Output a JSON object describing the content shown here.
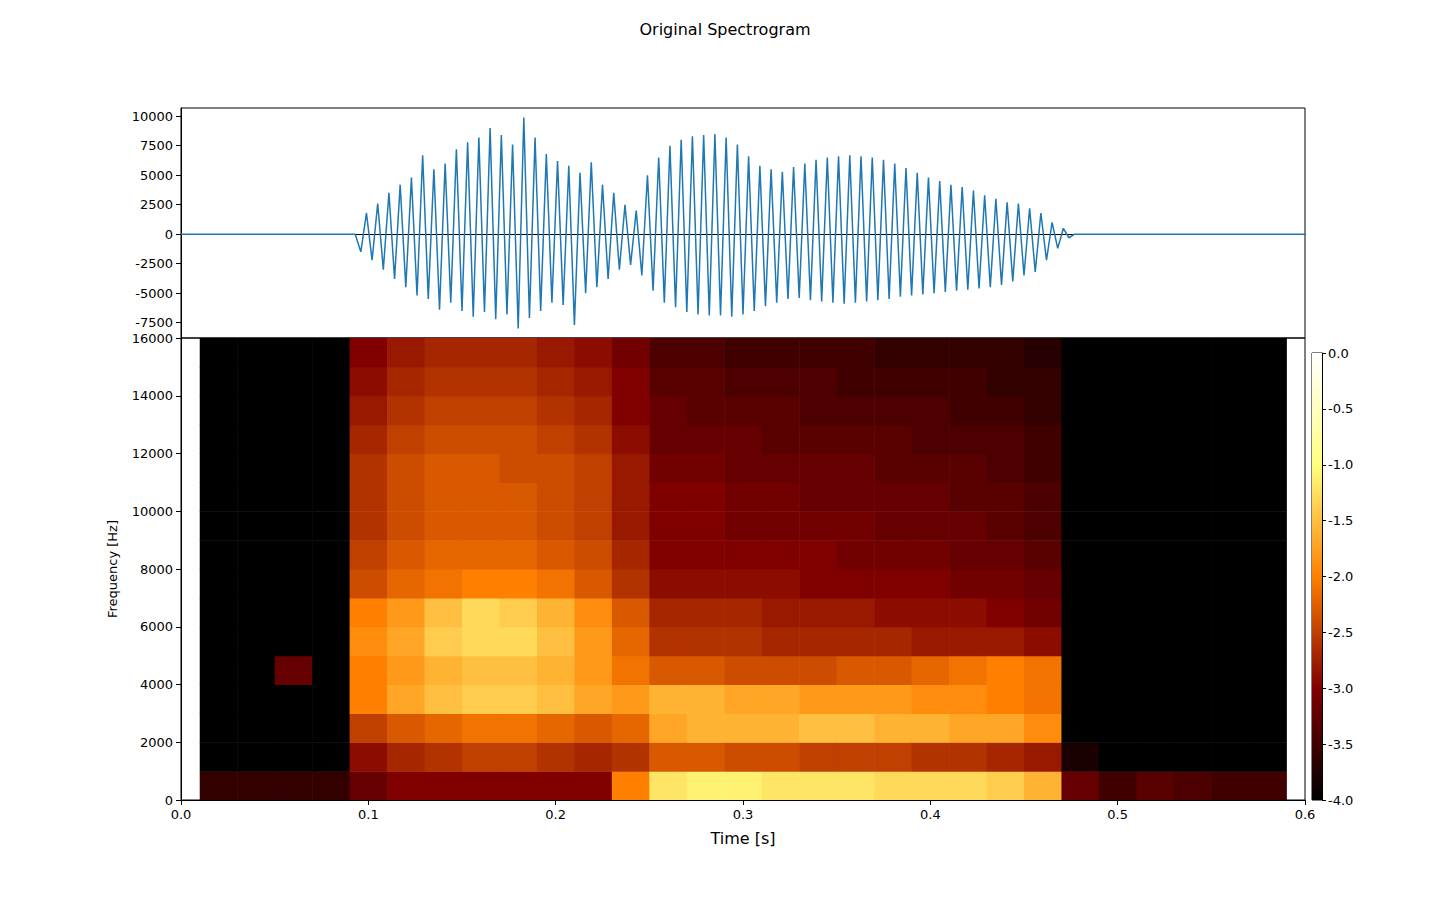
{
  "title": "Original Spectrogram",
  "chart_data": [
    {
      "type": "line",
      "color": "#1f77b4",
      "tick_labels": "y",
      "xlim": [
        0,
        0.6
      ],
      "ylim": [
        -8800,
        10700
      ],
      "yticks": [
        -7500,
        -5000,
        -2500,
        0,
        2500,
        5000,
        7500,
        10000
      ],
      "x": [
        0,
        0.093,
        0.096,
        0.099,
        0.102,
        0.105,
        0.108,
        0.111,
        0.114,
        0.117,
        0.12,
        0.123,
        0.126,
        0.129,
        0.132,
        0.135,
        0.138,
        0.141,
        0.144,
        0.147,
        0.15,
        0.153,
        0.156,
        0.159,
        0.162,
        0.165,
        0.168,
        0.171,
        0.174,
        0.177,
        0.18,
        0.183,
        0.186,
        0.189,
        0.192,
        0.195,
        0.198,
        0.201,
        0.204,
        0.207,
        0.21,
        0.213,
        0.216,
        0.219,
        0.222,
        0.225,
        0.228,
        0.231,
        0.234,
        0.237,
        0.24,
        0.243,
        0.246,
        0.249,
        0.252,
        0.255,
        0.258,
        0.261,
        0.264,
        0.267,
        0.27,
        0.273,
        0.276,
        0.279,
        0.282,
        0.285,
        0.288,
        0.291,
        0.294,
        0.297,
        0.3,
        0.303,
        0.306,
        0.309,
        0.312,
        0.315,
        0.318,
        0.321,
        0.324,
        0.327,
        0.33,
        0.333,
        0.336,
        0.339,
        0.342,
        0.345,
        0.348,
        0.351,
        0.354,
        0.357,
        0.36,
        0.363,
        0.366,
        0.369,
        0.372,
        0.375,
        0.378,
        0.381,
        0.384,
        0.387,
        0.39,
        0.393,
        0.396,
        0.399,
        0.402,
        0.405,
        0.408,
        0.411,
        0.414,
        0.417,
        0.42,
        0.423,
        0.426,
        0.429,
        0.432,
        0.435,
        0.438,
        0.441,
        0.444,
        0.447,
        0.45,
        0.453,
        0.456,
        0.459,
        0.462,
        0.465,
        0.468,
        0.471,
        0.474,
        0.477,
        0.6
      ],
      "values": [
        0,
        0,
        -1500,
        1800,
        -2200,
        2600,
        -3000,
        3500,
        -3800,
        4200,
        -4500,
        4800,
        -5200,
        6700,
        -5500,
        5500,
        -6400,
        6000,
        -5800,
        7200,
        -6500,
        7800,
        -7000,
        8200,
        -6600,
        9000,
        -7200,
        8400,
        -6800,
        7600,
        -8000,
        9900,
        -7100,
        8200,
        -6500,
        6800,
        -5800,
        6200,
        -6000,
        5800,
        -7700,
        5200,
        -5000,
        6100,
        -4500,
        4200,
        -3800,
        3500,
        -3000,
        2500,
        -2600,
        2000,
        -3500,
        5000,
        -4800,
        6500,
        -5800,
        7500,
        -6200,
        8000,
        -6600,
        8300,
        -6800,
        8400,
        -6900,
        8500,
        -6900,
        8200,
        -7000,
        7600,
        -6800,
        6600,
        -6500,
        5800,
        -6100,
        5500,
        -5800,
        5300,
        -5500,
        5700,
        -5400,
        6000,
        -5600,
        6300,
        -5700,
        6500,
        -5800,
        6600,
        -5900,
        6700,
        -5800,
        6600,
        -5700,
        6500,
        -5600,
        6300,
        -5500,
        6000,
        -5300,
        5600,
        -5200,
        5200,
        -5100,
        4800,
        -5000,
        4500,
        -4900,
        4200,
        -4800,
        4000,
        -4700,
        3700,
        -4600,
        3300,
        -4500,
        3000,
        -4300,
        2700,
        -4000,
        2600,
        -3500,
        2200,
        -3200,
        1800,
        -2200,
        1000,
        -1200,
        500,
        -300,
        0,
        0
      ]
    },
    {
      "type": "heatmap",
      "xlabel": "Time [s]",
      "ylabel": "Frequency [Hz]",
      "xlim": [
        0,
        0.6
      ],
      "ylim": [
        0,
        16000
      ],
      "xticks": [
        {
          "value": 0,
          "label": "0.0"
        },
        0.1,
        0.2,
        0.3,
        0.4,
        0.5,
        0.6
      ],
      "yticks": [
        0,
        2000,
        4000,
        6000,
        8000,
        10000,
        12000,
        14000,
        16000
      ],
      "time_edges": [
        0.01,
        0.03,
        0.05,
        0.07,
        0.09,
        0.11,
        0.13,
        0.15,
        0.17,
        0.19,
        0.21,
        0.23,
        0.25,
        0.27,
        0.29,
        0.31,
        0.33,
        0.35,
        0.37,
        0.39,
        0.41,
        0.43,
        0.45,
        0.47,
        0.49,
        0.51,
        0.53,
        0.55,
        0.57,
        0.59
      ],
      "freq_edges": [
        0,
        1000,
        2000,
        3000,
        4000,
        5000,
        6000,
        7000,
        8000,
        9000,
        10000,
        11000,
        12000,
        13000,
        14000,
        15000,
        16000
      ],
      "cells": [
        [
          -3.6,
          -4,
          -4,
          -4,
          -4,
          -4,
          -4,
          -4,
          -4,
          -4,
          -4,
          -4,
          -4,
          -4,
          -4,
          -4
        ],
        [
          -3.6,
          -4,
          -4,
          -4,
          -4,
          -4,
          -4,
          -4,
          -4,
          -4,
          -4,
          -4,
          -4,
          -4,
          -4,
          -4
        ],
        [
          -3.6,
          -4,
          -4,
          -4,
          -3.2,
          -4,
          -4,
          -4,
          -4,
          -4,
          -4,
          -4,
          -4,
          -4,
          -4,
          -4
        ],
        [
          -3.6,
          -4,
          -4,
          -4,
          -4,
          -4,
          -4,
          -4,
          -4,
          -4,
          -4,
          -4,
          -4,
          -4,
          -4,
          -4
        ],
        [
          -3.2,
          -2.9,
          -2.5,
          -2.0,
          -2.0,
          -1.9,
          -2.0,
          -2.4,
          -2.5,
          -2.6,
          -2.6,
          -2.6,
          -2.7,
          -2.8,
          -2.9,
          -3.0
        ],
        [
          -3.0,
          -2.7,
          -2.3,
          -1.7,
          -1.8,
          -1.7,
          -1.8,
          -2.2,
          -2.3,
          -2.4,
          -2.4,
          -2.4,
          -2.5,
          -2.6,
          -2.7,
          -2.8
        ],
        [
          -3.0,
          -2.6,
          -2.2,
          -1.5,
          -1.6,
          -1.4,
          -1.5,
          -2.1,
          -2.2,
          -2.3,
          -2.3,
          -2.3,
          -2.4,
          -2.5,
          -2.6,
          -2.7
        ],
        [
          -3.0,
          -2.5,
          -2.1,
          -1.4,
          -1.5,
          -1.3,
          -1.3,
          -2.0,
          -2.2,
          -2.3,
          -2.3,
          -2.3,
          -2.4,
          -2.5,
          -2.6,
          -2.7
        ],
        [
          -3.0,
          -2.5,
          -2.1,
          -1.4,
          -1.5,
          -1.3,
          -1.4,
          -2.0,
          -2.2,
          -2.3,
          -2.3,
          -2.4,
          -2.4,
          -2.5,
          -2.6,
          -2.7
        ],
        [
          -3.0,
          -2.6,
          -2.2,
          -1.5,
          -1.6,
          -1.5,
          -1.6,
          -2.1,
          -2.3,
          -2.4,
          -2.4,
          -2.4,
          -2.5,
          -2.6,
          -2.7,
          -2.8
        ],
        [
          -3.0,
          -2.7,
          -2.3,
          -1.7,
          -1.8,
          -1.8,
          -1.9,
          -2.3,
          -2.4,
          -2.5,
          -2.5,
          -2.5,
          -2.6,
          -2.7,
          -2.8,
          -2.9
        ],
        [
          -2.0,
          -2.6,
          -2.2,
          -1.8,
          -2.1,
          -2.2,
          -2.3,
          -2.6,
          -2.7,
          -2.8,
          -2.8,
          -2.8,
          -2.9,
          -3.0,
          -3.0,
          -3.1
        ],
        [
          -1.2,
          -2.3,
          -1.7,
          -1.6,
          -2.3,
          -2.6,
          -2.7,
          -2.9,
          -3.0,
          -3.0,
          -3.0,
          -3.1,
          -3.2,
          -3.2,
          -3.3,
          -3.4
        ],
        [
          -1.1,
          -2.3,
          -1.6,
          -1.6,
          -2.3,
          -2.6,
          -2.7,
          -2.9,
          -3.0,
          -3.0,
          -3.0,
          -3.1,
          -3.2,
          -3.3,
          -3.3,
          -3.4
        ],
        [
          -1.1,
          -2.4,
          -1.6,
          -1.7,
          -2.4,
          -2.6,
          -2.7,
          -2.9,
          -3.0,
          -3.1,
          -3.1,
          -3.2,
          -3.2,
          -3.3,
          -3.4,
          -3.5
        ],
        [
          -1.2,
          -2.4,
          -1.6,
          -1.7,
          -2.4,
          -2.7,
          -2.8,
          -2.9,
          -3.0,
          -3.1,
          -3.1,
          -3.2,
          -3.3,
          -3.3,
          -3.4,
          -3.5
        ],
        [
          -1.2,
          -2.5,
          -1.5,
          -1.8,
          -2.4,
          -2.7,
          -2.8,
          -3.0,
          -3.0,
          -3.1,
          -3.2,
          -3.2,
          -3.3,
          -3.4,
          -3.4,
          -3.5
        ],
        [
          -1.2,
          -2.5,
          -1.5,
          -1.8,
          -2.3,
          -2.7,
          -2.8,
          -3.0,
          -3.1,
          -3.1,
          -3.2,
          -3.2,
          -3.3,
          -3.4,
          -3.5,
          -3.5
        ],
        [
          -1.3,
          -2.5,
          -1.6,
          -1.8,
          -2.3,
          -2.7,
          -2.9,
          -3.0,
          -3.1,
          -3.2,
          -3.2,
          -3.3,
          -3.3,
          -3.4,
          -3.5,
          -3.6
        ],
        [
          -1.3,
          -2.6,
          -1.6,
          -1.9,
          -2.2,
          -2.8,
          -2.9,
          -3.0,
          -3.1,
          -3.2,
          -3.2,
          -3.3,
          -3.4,
          -3.4,
          -3.5,
          -3.6
        ],
        [
          -1.3,
          -2.6,
          -1.7,
          -1.9,
          -2.1,
          -2.8,
          -2.9,
          -3.1,
          -3.2,
          -3.2,
          -3.3,
          -3.3,
          -3.4,
          -3.5,
          -3.5,
          -3.6
        ],
        [
          -1.4,
          -2.7,
          -1.7,
          -2.0,
          -2.0,
          -2.8,
          -3.0,
          -3.1,
          -3.2,
          -3.3,
          -3.3,
          -3.4,
          -3.4,
          -3.5,
          -3.6,
          -3.6
        ],
        [
          -1.6,
          -2.8,
          -1.9,
          -2.1,
          -2.1,
          -2.9,
          -3.1,
          -3.2,
          -3.3,
          -3.4,
          -3.4,
          -3.5,
          -3.5,
          -3.6,
          -3.6,
          -3.7
        ],
        [
          -3.2,
          -3.8,
          -4,
          -4,
          -4,
          -4,
          -4,
          -4,
          -4,
          -4,
          -4,
          -4,
          -4,
          -4,
          -4,
          -4
        ],
        [
          -3.5,
          -4,
          -4,
          -4,
          -4,
          -4,
          -4,
          -4,
          -4,
          -4,
          -4,
          -4,
          -4,
          -4,
          -4,
          -4
        ],
        [
          -3.3,
          -4,
          -4,
          -4,
          -4,
          -4,
          -4,
          -4,
          -4,
          -4,
          -4,
          -4,
          -4,
          -4,
          -4,
          -4
        ],
        [
          -3.4,
          -4,
          -4,
          -4,
          -4,
          -4,
          -4,
          -4,
          -4,
          -4,
          -4,
          -4,
          -4,
          -4,
          -4,
          -4
        ],
        [
          -3.5,
          -4,
          -4,
          -4,
          -4,
          -4,
          -4,
          -4,
          -4,
          -4,
          -4,
          -4,
          -4,
          -4,
          -4,
          -4
        ],
        [
          -3.5,
          -4,
          -4,
          -4,
          -4,
          -4,
          -4,
          -4,
          -4,
          -4,
          -4,
          -4,
          -4,
          -4,
          -4,
          -4
        ]
      ],
      "colorbar": {
        "range": [
          -4,
          0
        ],
        "ticks": [
          {
            "value": 0,
            "label": "0.0"
          },
          -0.5,
          {
            "value": -1,
            "label": "-1.0"
          },
          -1.5,
          {
            "value": -2,
            "label": "-2.0"
          },
          -2.5,
          {
            "value": -3,
            "label": "-3.0"
          },
          -3.5,
          {
            "value": -4,
            "label": "-4.0"
          }
        ]
      }
    }
  ]
}
